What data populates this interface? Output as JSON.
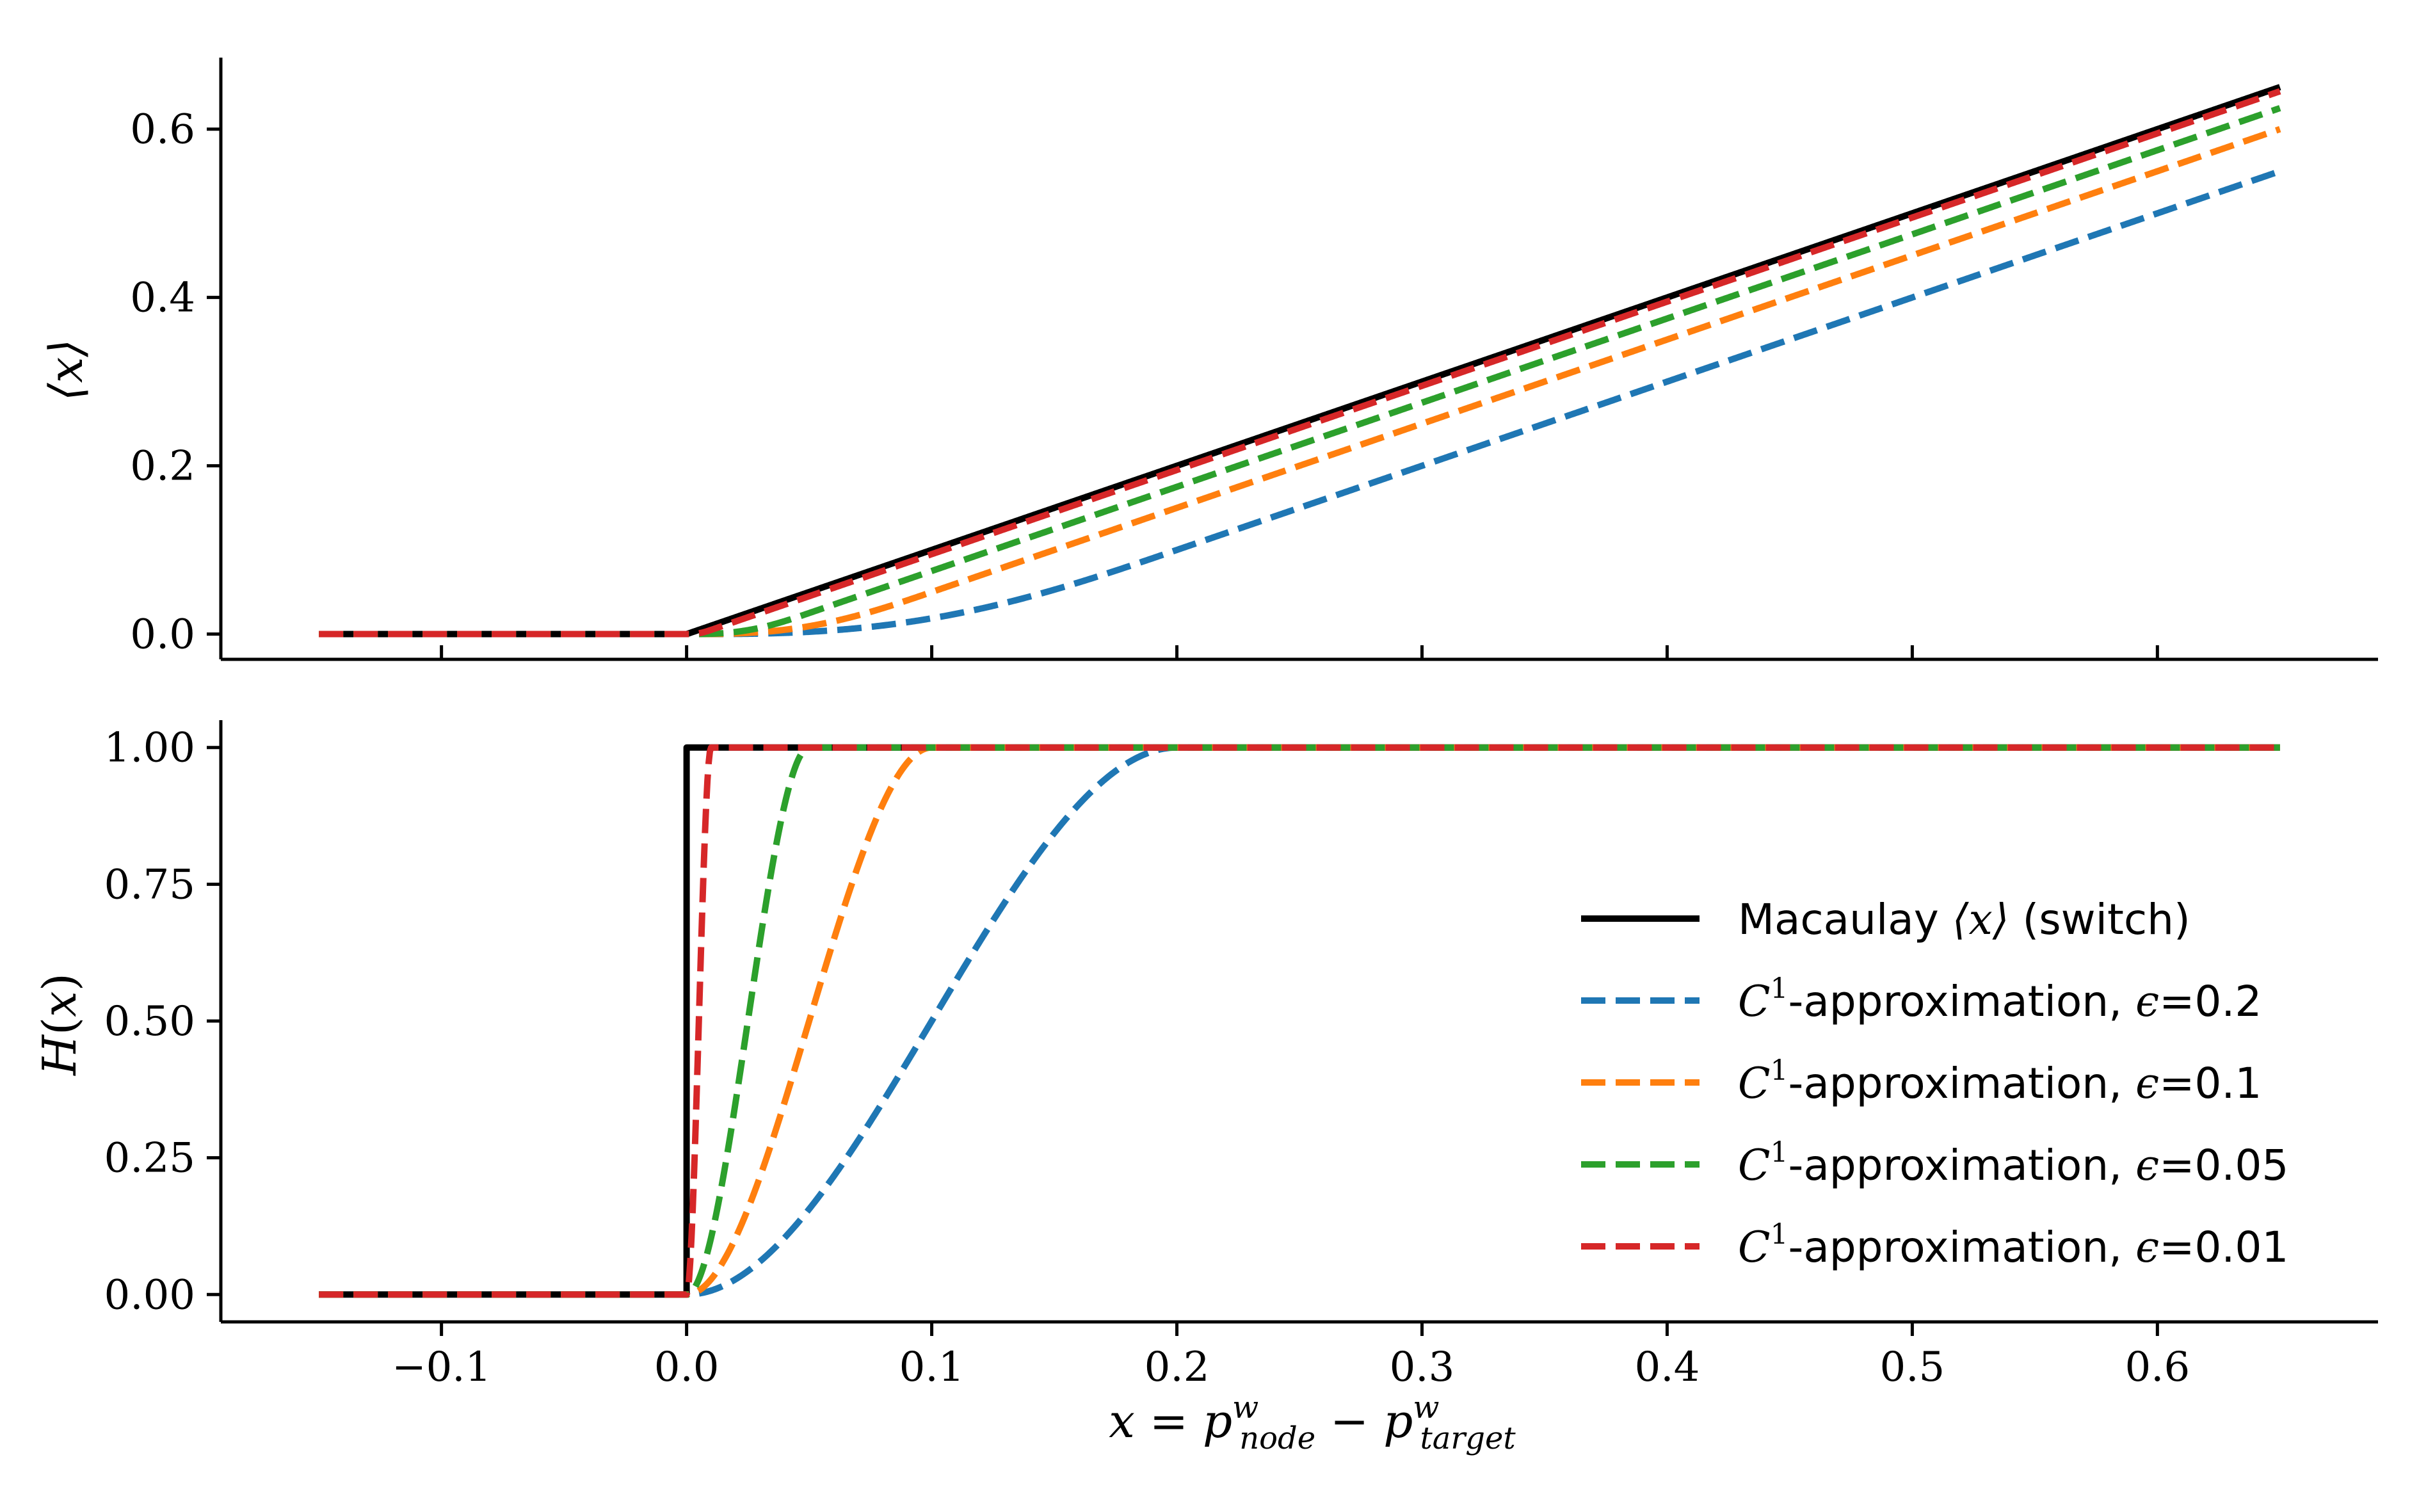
{
  "chart_data": [
    {
      "type": "line",
      "panel": "top",
      "ylabel": "⟨x⟩",
      "xlim": [
        -0.19,
        0.69
      ],
      "ylim": [
        -0.03,
        0.685
      ],
      "yticks": [
        0.0,
        0.2,
        0.4,
        0.6
      ],
      "ytick_labels": [
        "0.0",
        "0.2",
        "0.4",
        "0.6"
      ],
      "xticks": [
        -0.1,
        0.0,
        0.1,
        0.2,
        0.3,
        0.4,
        0.5,
        0.6
      ],
      "x_range": [
        -0.15,
        0.65
      ],
      "series": [
        {
          "name": "Macaulay ⟨x⟩ (switch)",
          "style": "solid",
          "color": "#000000",
          "function": "macaulay"
        },
        {
          "name": "C¹-approximation, ε=0.2",
          "style": "dashed",
          "color": "#1f77b4",
          "function": "macaulay_c1",
          "epsilon": 0.2
        },
        {
          "name": "C¹-approximation, ε=0.1",
          "style": "dashed",
          "color": "#ff7f0e",
          "function": "macaulay_c1",
          "epsilon": 0.1
        },
        {
          "name": "C¹-approximation, ε=0.05",
          "style": "dashed",
          "color": "#2ca02c",
          "function": "macaulay_c1",
          "epsilon": 0.05
        },
        {
          "name": "C¹-approximation, ε=0.01",
          "style": "dashed",
          "color": "#d62728",
          "function": "macaulay_c1",
          "epsilon": 0.01
        }
      ]
    },
    {
      "type": "line",
      "panel": "bottom",
      "ylabel": "H(x)",
      "xlabel": "x = p^w_node − p^w_target",
      "xlim": [
        -0.19,
        0.69
      ],
      "ylim": [
        -0.05,
        1.05
      ],
      "yticks": [
        0.0,
        0.25,
        0.5,
        0.75,
        1.0
      ],
      "ytick_labels": [
        "0.00",
        "0.25",
        "0.50",
        "0.75",
        "1.00"
      ],
      "xticks": [
        -0.1,
        0.0,
        0.1,
        0.2,
        0.3,
        0.4,
        0.5,
        0.6
      ],
      "xtick_labels": [
        "−0.1",
        "0.0",
        "0.1",
        "0.2",
        "0.3",
        "0.4",
        "0.5",
        "0.6"
      ],
      "x_range": [
        -0.15,
        0.65
      ],
      "legend_position": "lower-right",
      "series": [
        {
          "name": "Macaulay ⟨x⟩ (switch)",
          "style": "solid",
          "color": "#000000",
          "function": "heaviside"
        },
        {
          "name": "C¹-approximation, ε=0.2",
          "style": "dashed",
          "color": "#1f77b4",
          "function": "heaviside_c1",
          "epsilon": 0.2
        },
        {
          "name": "C¹-approximation, ε=0.1",
          "style": "dashed",
          "color": "#ff7f0e",
          "function": "heaviside_c1",
          "epsilon": 0.1
        },
        {
          "name": "C¹-approximation, ε=0.05",
          "style": "dashed",
          "color": "#2ca02c",
          "function": "heaviside_c1",
          "epsilon": 0.05
        },
        {
          "name": "C¹-approximation, ε=0.01",
          "style": "dashed",
          "color": "#d62728",
          "function": "heaviside_c1",
          "epsilon": 0.01
        }
      ]
    }
  ],
  "legend": {
    "entries": [
      {
        "prefix": "Macaulay ",
        "math": "⟨x⟩",
        "suffix": " (switch)",
        "color": "#000000",
        "style": "solid"
      },
      {
        "prefix": "",
        "math": "C",
        "sup": "1",
        "suffix": "-approximation, ",
        "eps": "ϵ",
        "value": "=0.2",
        "color": "#1f77b4",
        "style": "dashed"
      },
      {
        "prefix": "",
        "math": "C",
        "sup": "1",
        "suffix": "-approximation, ",
        "eps": "ϵ",
        "value": "=0.1",
        "color": "#ff7f0e",
        "style": "dashed"
      },
      {
        "prefix": "",
        "math": "C",
        "sup": "1",
        "suffix": "-approximation, ",
        "eps": "ϵ",
        "value": "=0.05",
        "color": "#2ca02c",
        "style": "dashed"
      },
      {
        "prefix": "",
        "math": "C",
        "sup": "1",
        "suffix": "-approximation, ",
        "eps": "ϵ",
        "value": "=0.01",
        "color": "#d62728",
        "style": "dashed"
      }
    ]
  }
}
